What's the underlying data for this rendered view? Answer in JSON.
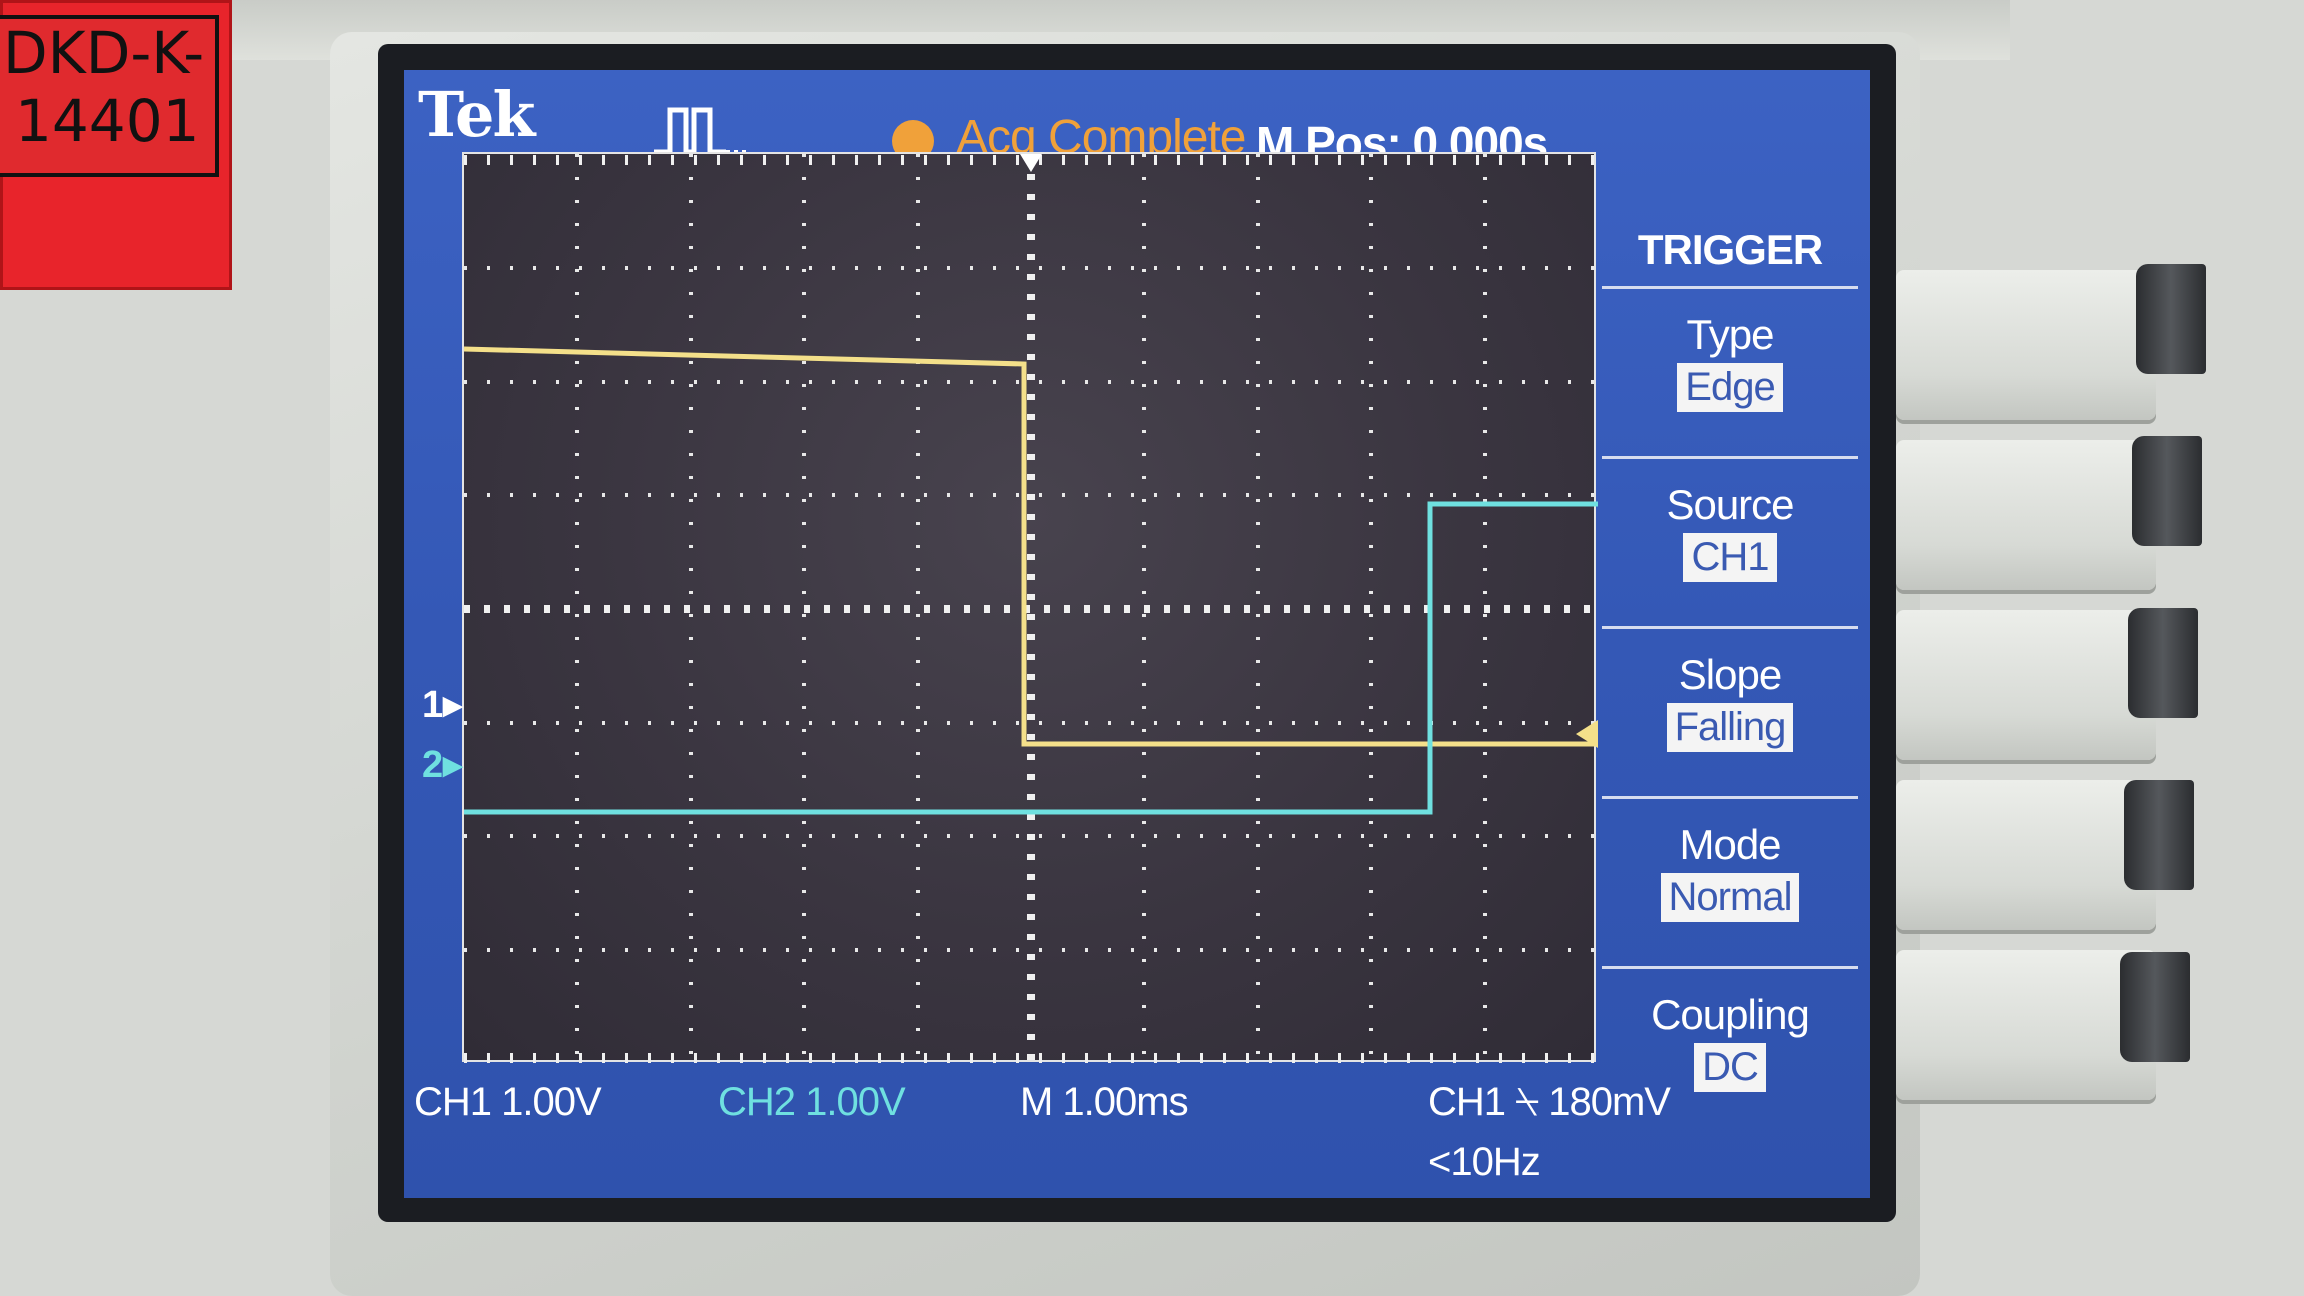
{
  "sticker": {
    "line1": "DKD-K-",
    "line2": "14401"
  },
  "header": {
    "brand": "Tek",
    "acq_mode_icon": "pulse-acquire-icon",
    "status_color": "#f0a13a",
    "status": "Acq Complete",
    "position": "M Pos: 0.000s"
  },
  "markers": {
    "ch1": "1",
    "ch2": "2"
  },
  "waveform_colors": {
    "ch1": "#f4e08a",
    "ch2": "#6fe0e0"
  },
  "trigger_menu": {
    "title": "TRIGGER",
    "items": [
      {
        "label": "Type",
        "value": "Edge"
      },
      {
        "label": "Source",
        "value": "CH1"
      },
      {
        "label": "Slope",
        "value": "Falling"
      },
      {
        "label": "Mode",
        "value": "Normal"
      },
      {
        "label": "Coupling",
        "value": "DC"
      }
    ]
  },
  "footer": {
    "ch1_scale": "CH1  1.00V",
    "ch2_scale": "CH2  1.00V",
    "timebase": "M 1.00ms",
    "trigger_info": "CH1 ⍀ 180mV",
    "frequency": "<10Hz"
  }
}
